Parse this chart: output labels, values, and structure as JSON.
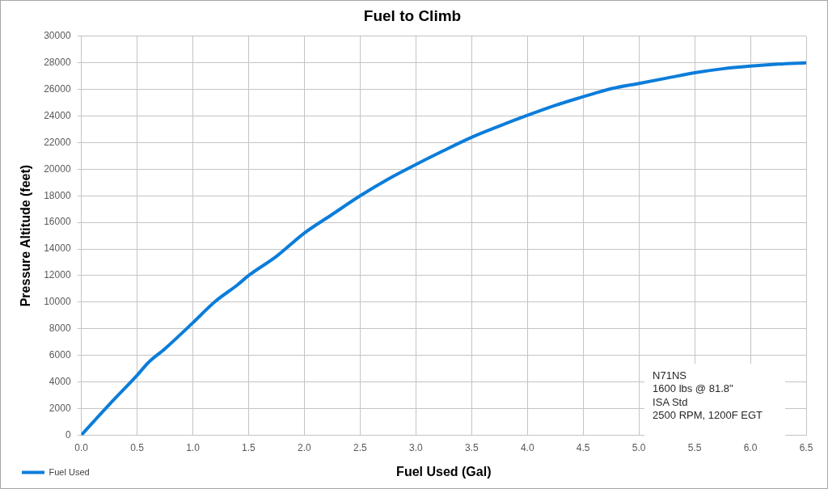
{
  "chart_data": {
    "type": "line",
    "title": "Fuel to Climb",
    "xlabel": "Fuel Used (Gal)",
    "ylabel": "Pressure Altitude (feet)",
    "x": [
      0,
      0.25,
      0.5,
      0.6,
      0.75,
      1.0,
      1.2,
      1.4,
      1.5,
      1.75,
      2.0,
      2.25,
      2.5,
      2.75,
      3.0,
      3.25,
      3.5,
      3.75,
      4.0,
      4.25,
      4.5,
      4.6,
      4.75,
      5.0,
      5.25,
      5.5,
      5.75,
      6.0,
      6.25,
      6.5
    ],
    "series": [
      {
        "name": "Fuel Used",
        "color": "#0b7dda",
        "values": [
          0,
          2300,
          4500,
          5450,
          6500,
          8450,
          10050,
          11300,
          12000,
          13450,
          15200,
          16600,
          18000,
          19250,
          20350,
          21400,
          22400,
          23250,
          24050,
          24800,
          25450,
          25700,
          26050,
          26450,
          26850,
          27250,
          27550,
          27750,
          27900,
          28000
        ]
      }
    ],
    "xlim": [
      0,
      6.5
    ],
    "xticks": [
      {
        "value": 0,
        "label": "0.0"
      },
      0.5,
      {
        "value": 1,
        "label": "1.0"
      },
      1.5,
      {
        "value": 2,
        "label": "2.0"
      },
      2.5,
      {
        "value": 3,
        "label": "3.0"
      },
      3.5,
      {
        "value": 4,
        "label": "4.0"
      },
      4.5,
      {
        "value": 5,
        "label": "5.0"
      },
      5.5,
      {
        "value": 6,
        "label": "6.0"
      },
      6.5
    ],
    "ylim": [
      0,
      30000
    ],
    "yticks": [
      0,
      2000,
      4000,
      6000,
      8000,
      10000,
      12000,
      14000,
      16000,
      18000,
      20000,
      22000,
      24000,
      26000,
      28000,
      30000
    ],
    "grid": true,
    "legend": "bottom left",
    "marker": "none",
    "line_style": "solid",
    "annotations": [
      "N71NS",
      "1600 lbs @ 81.8\"",
      "ISA Std",
      "2500 RPM, 1200F EGT"
    ]
  }
}
